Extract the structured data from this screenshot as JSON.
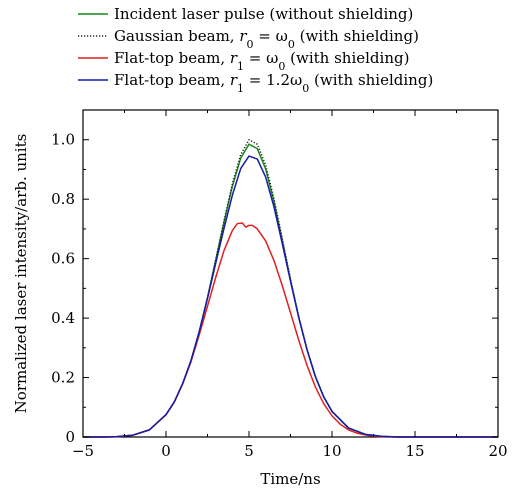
{
  "chart_data": {
    "type": "line",
    "xlabel": "Time/ns",
    "ylabel": "Normalized laser intensity/arb. units",
    "xlim": [
      -5,
      20
    ],
    "ylim": [
      0,
      1.1
    ],
    "xticks": [
      -5,
      0,
      5,
      10,
      15,
      20
    ],
    "xtick_labels": [
      "−5",
      "0",
      "5",
      "10",
      "15",
      "20"
    ],
    "yticks": [
      0,
      0.2,
      0.4,
      0.6,
      0.8,
      1.0
    ],
    "ytick_labels": [
      "0",
      "0.2",
      "0.4",
      "0.6",
      "0.8",
      "1.0"
    ],
    "grid": false,
    "legend_position": "top",
    "series": [
      {
        "name": "Incident laser pulse (without shielding)",
        "color": "#1a8a1a",
        "dash": "solid",
        "x": [
          -5,
          -4,
          -3,
          -2,
          -1,
          0,
          0.5,
          1,
          1.5,
          2,
          2.5,
          3,
          3.5,
          4,
          4.5,
          5,
          5.5,
          6,
          6.5,
          7,
          7.5,
          8,
          8.5,
          9,
          9.5,
          10,
          11,
          12,
          13,
          14,
          15,
          20
        ],
        "y": [
          0,
          0,
          0.001,
          0.006,
          0.024,
          0.075,
          0.118,
          0.179,
          0.256,
          0.354,
          0.469,
          0.596,
          0.724,
          0.844,
          0.938,
          0.985,
          0.97,
          0.902,
          0.793,
          0.662,
          0.528,
          0.402,
          0.293,
          0.203,
          0.135,
          0.086,
          0.03,
          0.009,
          0.002,
          0,
          0,
          0
        ]
      },
      {
        "name": "Gaussian beam, r0 = ω0 (with shielding)",
        "legend_parts": [
          "Gaussian beam, ",
          "r",
          "0",
          " = ω",
          "0",
          " (with shielding)"
        ],
        "color": "#222222",
        "dash": "dotted",
        "x": [
          -5,
          -4,
          -3,
          -2,
          -1,
          0,
          0.5,
          1,
          1.5,
          2,
          2.5,
          3,
          3.5,
          4,
          4.5,
          5,
          5.5,
          6,
          6.5,
          7,
          7.5,
          8,
          8.5,
          9,
          9.5,
          10,
          11,
          12,
          13,
          14,
          15,
          20
        ],
        "y": [
          0,
          0,
          0.001,
          0.006,
          0.024,
          0.075,
          0.118,
          0.179,
          0.256,
          0.354,
          0.469,
          0.598,
          0.728,
          0.852,
          0.95,
          1.0,
          0.985,
          0.915,
          0.803,
          0.668,
          0.531,
          0.404,
          0.294,
          0.204,
          0.136,
          0.086,
          0.03,
          0.009,
          0.002,
          0,
          0,
          0
        ]
      },
      {
        "name": "Flat-top beam, r1 = ω0 (with shielding)",
        "legend_parts": [
          "Flat-top beam, ",
          "r",
          "1",
          " = ω",
          "0",
          " (with shielding)"
        ],
        "color": "#e02020",
        "dash": "solid",
        "x": [
          -5,
          -4,
          -3,
          -2,
          -1,
          0,
          0.5,
          1,
          1.5,
          2,
          2.5,
          3,
          3.5,
          4,
          4.3,
          4.6,
          4.8,
          5,
          5.2,
          5.5,
          6,
          6.5,
          7,
          7.5,
          8,
          8.5,
          9,
          9.5,
          10,
          10.5,
          11,
          11.5,
          12,
          12.5,
          13,
          14,
          15,
          20
        ],
        "y": [
          0,
          0,
          0.001,
          0.006,
          0.024,
          0.075,
          0.118,
          0.178,
          0.252,
          0.343,
          0.44,
          0.538,
          0.628,
          0.695,
          0.718,
          0.72,
          0.706,
          0.712,
          0.712,
          0.7,
          0.66,
          0.594,
          0.51,
          0.418,
          0.325,
          0.24,
          0.168,
          0.112,
          0.071,
          0.043,
          0.024,
          0.013,
          0.007,
          0.003,
          0.001,
          0,
          0,
          0
        ]
      },
      {
        "name": "Flat-top beam, r1 = 1.2ω0 (with shielding)",
        "legend_parts": [
          "Flat-top beam, ",
          "r",
          "1",
          " = 1.2ω",
          "0",
          " (with shielding)"
        ],
        "color": "#1a1aa8",
        "dash": "solid",
        "x": [
          -5,
          -4,
          -3,
          -2,
          -1,
          0,
          0.5,
          1,
          1.5,
          2,
          2.5,
          3,
          3.5,
          4,
          4.5,
          5,
          5.5,
          6,
          6.5,
          7,
          7.5,
          8,
          8.5,
          9,
          9.5,
          10,
          11,
          12,
          13,
          14,
          15,
          20
        ],
        "y": [
          0,
          0,
          0.001,
          0.006,
          0.024,
          0.075,
          0.118,
          0.179,
          0.256,
          0.353,
          0.466,
          0.586,
          0.703,
          0.814,
          0.903,
          0.945,
          0.935,
          0.875,
          0.775,
          0.652,
          0.524,
          0.401,
          0.293,
          0.203,
          0.135,
          0.086,
          0.03,
          0.009,
          0.002,
          0,
          0,
          0
        ]
      }
    ]
  }
}
